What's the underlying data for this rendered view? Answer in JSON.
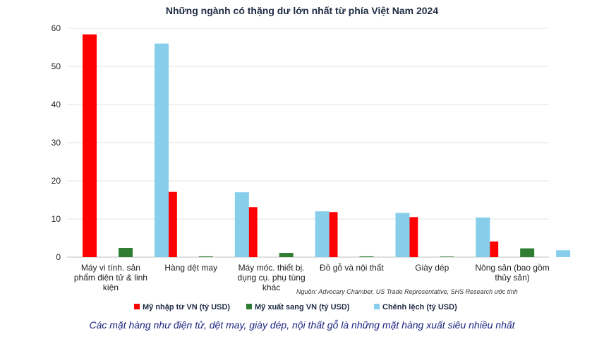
{
  "chart_data": {
    "type": "bar",
    "title": "Những ngành có thặng dư lớn nhất từ phía Việt Nam 2024",
    "categories": [
      [
        "Máy vi tính. sản",
        "phẩm điện tử & linh",
        "kiện"
      ],
      [
        "Hàng dệt may"
      ],
      [
        "Máy móc. thiết bị.",
        "dụng cụ. phụ tùng",
        "khác"
      ],
      [
        "Đồ gỗ và nội thất"
      ],
      [
        "Giày dép"
      ],
      [
        "Nông sản (bao gồm",
        "thủy sản)"
      ]
    ],
    "series": [
      {
        "name": "Mỹ nhập từ VN (tỷ USD)",
        "color": "#ff0000",
        "values": [
          58.4,
          17.1,
          13.1,
          11.8,
          10.5,
          4.1
        ]
      },
      {
        "name": "Mỹ xuất sang VN (tỷ USD)",
        "color": "#2e7d32",
        "values": [
          2.4,
          0.2,
          1.1,
          0.2,
          0,
          2.3
        ]
      },
      {
        "name": "Chênh lệch (tỷ USD)",
        "color": "#87ceeb",
        "values": [
          56.0,
          17.0,
          12.0,
          11.6,
          10.4,
          1.8
        ]
      }
    ],
    "y_ticks": [
      "0",
      "10",
      "20",
      "30",
      "40",
      "50",
      "60"
    ],
    "ylim": [
      0,
      60
    ],
    "grid": true,
    "legend_position": "bottom",
    "source": "Nguồn: Advocary Chamber, US Trade Representative, SHS Research ước tính"
  },
  "caption": "Các mặt hàng như điện tử, dệt may, giày dép, nội thất gỗ là những mặt hàng xuất siêu nhiều nhất"
}
